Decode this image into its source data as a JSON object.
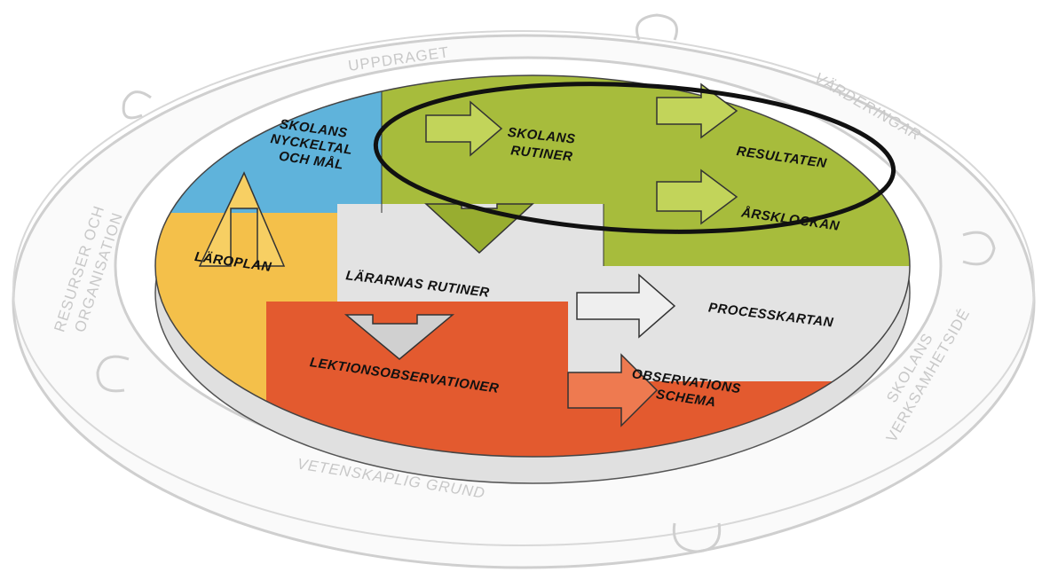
{
  "ring": {
    "top": "UPPDRAGET",
    "right_top": "VÄRDERINGAR",
    "right_bottom": [
      "SKOLANS",
      "VERKSAMHETSIDÉ"
    ],
    "bottom": "VETENSKAPLIG GRUND",
    "left": [
      "RESURSER OCH",
      "ORGANISATION"
    ]
  },
  "segments": {
    "key_figures": [
      "SKOLANS",
      "NYCKELTAL",
      "OCH MÅL"
    ],
    "curriculum": "LÄROPLAN",
    "school_routines": [
      "SKOLANS",
      "RUTINER"
    ],
    "results": "RESULTATEN",
    "year_clock": "ÅRSKLOCKAN",
    "teacher_routines": "LÄRARNAS RUTINER",
    "process_map": "PROCESSKARTAN",
    "lesson_observations": "LEKTIONSOBSERVATIONER",
    "observation_schedule": [
      "OBSERVATIONS",
      "SCHEMA"
    ]
  }
}
